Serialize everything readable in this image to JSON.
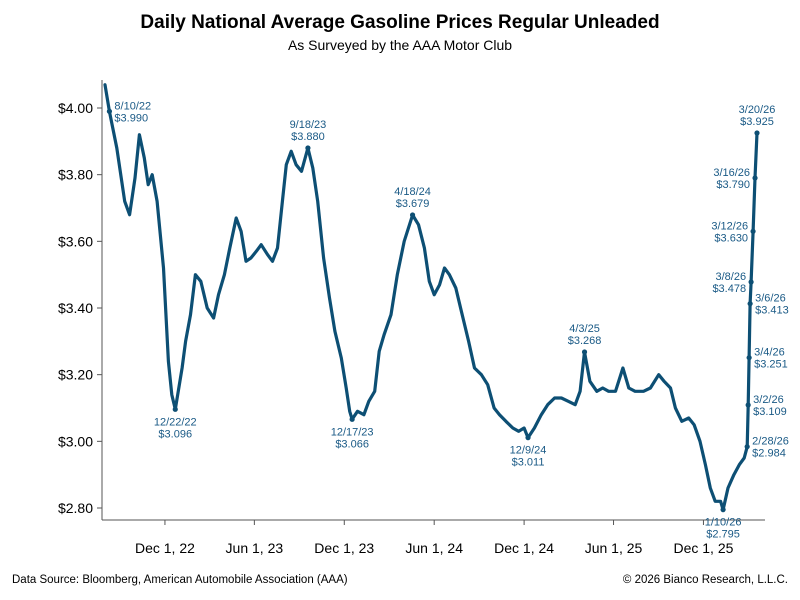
{
  "chart_data": {
    "type": "line",
    "title": "Daily National Average Gasoline Prices Regular Unleaded",
    "subtitle": "As Surveyed by the AAA Motor Club",
    "xlabel": "",
    "ylabel": "",
    "ylim": [
      2.72,
      4.14
    ],
    "y_ticks": [
      2.8,
      3.0,
      3.2,
      3.4,
      3.6,
      3.8,
      4.0
    ],
    "y_tick_labels": [
      "$2.80",
      "$3.00",
      "$3.20",
      "$3.40",
      "$3.60",
      "$3.80",
      "$4.00"
    ],
    "x_ticks": [
      {
        "date": "2022-12-01",
        "label": "Dec 1, 22"
      },
      {
        "date": "2023-06-01",
        "label": "Jun 1, 23"
      },
      {
        "date": "2023-12-01",
        "label": "Dec 1, 23"
      },
      {
        "date": "2024-06-01",
        "label": "Jun 1, 24"
      },
      {
        "date": "2024-12-01",
        "label": "Dec 1, 24"
      },
      {
        "date": "2025-06-01",
        "label": "Jun 1, 25"
      },
      {
        "date": "2025-12-01",
        "label": "Dec 1, 25"
      }
    ],
    "grid": false,
    "line_color": "#0d4f74",
    "label_color": "#1a5a86",
    "series": [
      {
        "name": "Regular Unleaded",
        "points": [
          [
            "2022-08-01",
            4.07
          ],
          [
            "2022-08-10",
            3.99
          ],
          [
            "2022-08-25",
            3.88
          ],
          [
            "2022-09-10",
            3.72
          ],
          [
            "2022-09-20",
            3.68
          ],
          [
            "2022-10-01",
            3.79
          ],
          [
            "2022-10-10",
            3.92
          ],
          [
            "2022-10-20",
            3.85
          ],
          [
            "2022-10-28",
            3.77
          ],
          [
            "2022-11-05",
            3.8
          ],
          [
            "2022-11-15",
            3.72
          ],
          [
            "2022-11-28",
            3.52
          ],
          [
            "2022-12-08",
            3.24
          ],
          [
            "2022-12-15",
            3.14
          ],
          [
            "2022-12-22",
            3.096
          ],
          [
            "2023-01-05",
            3.22
          ],
          [
            "2023-01-12",
            3.3
          ],
          [
            "2023-01-22",
            3.38
          ],
          [
            "2023-02-01",
            3.5
          ],
          [
            "2023-02-12",
            3.48
          ],
          [
            "2023-02-25",
            3.4
          ],
          [
            "2023-03-10",
            3.37
          ],
          [
            "2023-03-20",
            3.44
          ],
          [
            "2023-04-01",
            3.5
          ],
          [
            "2023-04-12",
            3.58
          ],
          [
            "2023-04-25",
            3.67
          ],
          [
            "2023-05-05",
            3.63
          ],
          [
            "2023-05-15",
            3.54
          ],
          [
            "2023-05-25",
            3.55
          ],
          [
            "2023-06-05",
            3.57
          ],
          [
            "2023-06-15",
            3.59
          ],
          [
            "2023-06-28",
            3.56
          ],
          [
            "2023-07-08",
            3.54
          ],
          [
            "2023-07-18",
            3.58
          ],
          [
            "2023-07-28",
            3.72
          ],
          [
            "2023-08-05",
            3.83
          ],
          [
            "2023-08-15",
            3.87
          ],
          [
            "2023-08-25",
            3.83
          ],
          [
            "2023-09-05",
            3.81
          ],
          [
            "2023-09-18",
            3.88
          ],
          [
            "2023-09-28",
            3.82
          ],
          [
            "2023-10-08",
            3.72
          ],
          [
            "2023-10-20",
            3.55
          ],
          [
            "2023-11-01",
            3.43
          ],
          [
            "2023-11-12",
            3.33
          ],
          [
            "2023-11-25",
            3.25
          ],
          [
            "2023-12-05",
            3.16
          ],
          [
            "2023-12-12",
            3.09
          ],
          [
            "2023-12-17",
            3.066
          ],
          [
            "2023-12-28",
            3.09
          ],
          [
            "2024-01-10",
            3.08
          ],
          [
            "2024-01-20",
            3.12
          ],
          [
            "2024-02-01",
            3.15
          ],
          [
            "2024-02-10",
            3.27
          ],
          [
            "2024-02-20",
            3.32
          ],
          [
            "2024-03-05",
            3.38
          ],
          [
            "2024-03-18",
            3.5
          ],
          [
            "2024-04-01",
            3.6
          ],
          [
            "2024-04-18",
            3.679
          ],
          [
            "2024-04-30",
            3.65
          ],
          [
            "2024-05-12",
            3.58
          ],
          [
            "2024-05-22",
            3.48
          ],
          [
            "2024-06-01",
            3.44
          ],
          [
            "2024-06-12",
            3.47
          ],
          [
            "2024-06-22",
            3.52
          ],
          [
            "2024-07-02",
            3.5
          ],
          [
            "2024-07-15",
            3.46
          ],
          [
            "2024-07-28",
            3.38
          ],
          [
            "2024-08-10",
            3.3
          ],
          [
            "2024-08-22",
            3.22
          ],
          [
            "2024-09-05",
            3.2
          ],
          [
            "2024-09-18",
            3.17
          ],
          [
            "2024-10-01",
            3.1
          ],
          [
            "2024-10-12",
            3.08
          ],
          [
            "2024-10-25",
            3.06
          ],
          [
            "2024-11-08",
            3.04
          ],
          [
            "2024-11-20",
            3.03
          ],
          [
            "2024-12-01",
            3.04
          ],
          [
            "2024-12-09",
            3.011
          ],
          [
            "2024-12-22",
            3.04
          ],
          [
            "2025-01-05",
            3.08
          ],
          [
            "2025-01-18",
            3.11
          ],
          [
            "2025-02-01",
            3.13
          ],
          [
            "2025-02-15",
            3.13
          ],
          [
            "2025-03-01",
            3.12
          ],
          [
            "2025-03-15",
            3.11
          ],
          [
            "2025-03-25",
            3.15
          ],
          [
            "2025-04-03",
            3.268
          ],
          [
            "2025-04-14",
            3.18
          ],
          [
            "2025-04-28",
            3.15
          ],
          [
            "2025-05-10",
            3.16
          ],
          [
            "2025-05-22",
            3.15
          ],
          [
            "2025-06-05",
            3.15
          ],
          [
            "2025-06-20",
            3.22
          ],
          [
            "2025-07-02",
            3.16
          ],
          [
            "2025-07-15",
            3.15
          ],
          [
            "2025-08-01",
            3.15
          ],
          [
            "2025-08-15",
            3.16
          ],
          [
            "2025-09-01",
            3.2
          ],
          [
            "2025-09-12",
            3.18
          ],
          [
            "2025-09-25",
            3.16
          ],
          [
            "2025-10-05",
            3.1
          ],
          [
            "2025-10-18",
            3.06
          ],
          [
            "2025-11-01",
            3.07
          ],
          [
            "2025-11-12",
            3.05
          ],
          [
            "2025-11-24",
            3.0
          ],
          [
            "2025-12-05",
            2.93
          ],
          [
            "2025-12-15",
            2.86
          ],
          [
            "2025-12-25",
            2.82
          ],
          [
            "2026-01-05",
            2.82
          ],
          [
            "2026-01-10",
            2.795
          ],
          [
            "2026-01-20",
            2.86
          ],
          [
            "2026-02-01",
            2.9
          ],
          [
            "2026-02-12",
            2.93
          ],
          [
            "2026-02-22",
            2.95
          ],
          [
            "2026-02-28",
            2.984
          ],
          [
            "2026-03-02",
            3.109
          ],
          [
            "2026-03-04",
            3.251
          ],
          [
            "2026-03-06",
            3.413
          ],
          [
            "2026-03-08",
            3.478
          ],
          [
            "2026-03-12",
            3.63
          ],
          [
            "2026-03-16",
            3.79
          ],
          [
            "2026-03-20",
            3.925
          ]
        ]
      }
    ],
    "annotations": [
      {
        "date": "2022-08-10",
        "value": 3.99,
        "date_label": "8/10/22",
        "value_label": "$3.990",
        "placement": "right"
      },
      {
        "date": "2022-12-22",
        "value": 3.096,
        "date_label": "12/22/22",
        "value_label": "$3.096",
        "placement": "below"
      },
      {
        "date": "2023-09-18",
        "value": 3.88,
        "date_label": "9/18/23",
        "value_label": "$3.880",
        "placement": "above"
      },
      {
        "date": "2023-12-17",
        "value": 3.066,
        "date_label": "12/17/23",
        "value_label": "$3.066",
        "placement": "below"
      },
      {
        "date": "2024-04-18",
        "value": 3.679,
        "date_label": "4/18/24",
        "value_label": "$3.679",
        "placement": "above"
      },
      {
        "date": "2024-12-09",
        "value": 3.011,
        "date_label": "12/9/24",
        "value_label": "$3.011",
        "placement": "below"
      },
      {
        "date": "2025-04-03",
        "value": 3.268,
        "date_label": "4/3/25",
        "value_label": "$3.268",
        "placement": "above"
      },
      {
        "date": "2026-01-10",
        "value": 2.795,
        "date_label": "1/10/26",
        "value_label": "$2.795",
        "placement": "below"
      },
      {
        "date": "2026-02-28",
        "value": 2.984,
        "date_label": "2/28/26",
        "value_label": "$2.984",
        "placement": "right"
      },
      {
        "date": "2026-03-02",
        "value": 3.109,
        "date_label": "3/2/26",
        "value_label": "$3.109",
        "placement": "right"
      },
      {
        "date": "2026-03-04",
        "value": 3.251,
        "date_label": "3/4/26",
        "value_label": "$3.251",
        "placement": "right"
      },
      {
        "date": "2026-03-06",
        "value": 3.413,
        "date_label": "3/6/26",
        "value_label": "$3.413",
        "placement": "right"
      },
      {
        "date": "2026-03-08",
        "value": 3.478,
        "date_label": "3/8/26",
        "value_label": "$3.478",
        "placement": "left"
      },
      {
        "date": "2026-03-12",
        "value": 3.63,
        "date_label": "3/12/26",
        "value_label": "$3.630",
        "placement": "left"
      },
      {
        "date": "2026-03-16",
        "value": 3.79,
        "date_label": "3/16/26",
        "value_label": "$3.790",
        "placement": "left"
      },
      {
        "date": "2026-03-20",
        "value": 3.925,
        "date_label": "3/20/26",
        "value_label": "$3.925",
        "placement": "above"
      }
    ]
  },
  "footer": {
    "source": "Data Source: Bloomberg, American Automobile Association (AAA)",
    "copyright": "© 2026 Bianco Research, L.L.C."
  }
}
